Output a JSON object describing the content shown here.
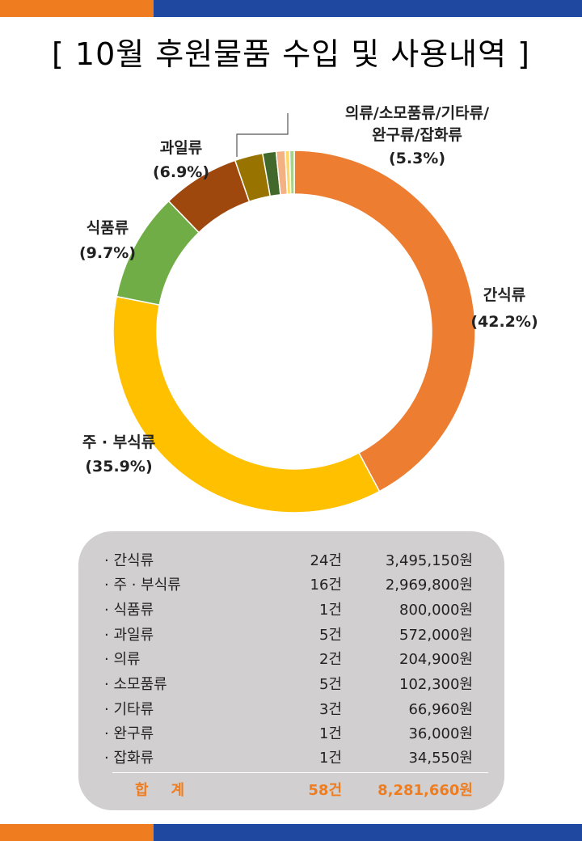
{
  "title": "[ 10월 후원물품 수입 및 사용내역 ]",
  "colors": {
    "band_orange": "#ef7d1f",
    "band_blue": "#1f48a0",
    "total_text": "#ef7d1f"
  },
  "chart_data": {
    "type": "donut",
    "segments": [
      {
        "name": "간식류",
        "value": 42.2,
        "color": "#ed7d31"
      },
      {
        "name": "주 · 부식류",
        "value": 35.9,
        "color": "#ffc000"
      },
      {
        "name": "식품류",
        "value": 9.7,
        "color": "#70ad47"
      },
      {
        "name": "과일류",
        "value": 6.9,
        "color": "#9e480e"
      },
      {
        "name": "의류",
        "value": 2.5,
        "color": "#997300"
      },
      {
        "name": "소모품류",
        "value": 1.2,
        "color": "#43682b"
      },
      {
        "name": "기타류",
        "value": 0.8,
        "color": "#f4b183"
      },
      {
        "name": "완구류",
        "value": 0.4,
        "color": "#ffd966"
      },
      {
        "name": "잡화류",
        "value": 0.4,
        "color": "#a9d18e"
      }
    ],
    "labels": {
      "snack": {
        "name": "간식류",
        "pct": "(42.2%)"
      },
      "staple": {
        "name": "주 · 부식류",
        "pct": "(35.9%)"
      },
      "food": {
        "name": "식품류",
        "pct": "(9.7%)"
      },
      "fruit": {
        "name": "과일류",
        "pct": "(6.9%)"
      },
      "misc": {
        "line1": "의류/소모품류/기타류/",
        "line2": "완구류/잡화류",
        "pct": "(5.3%)"
      }
    }
  },
  "summary": {
    "rows": [
      {
        "category": "· 간식류",
        "count": "24건",
        "amount": "3,495,150원"
      },
      {
        "category": "· 주 · 부식류",
        "count": "16건",
        "amount": "2,969,800원"
      },
      {
        "category": "· 식품류",
        "count": "1건",
        "amount": "800,000원"
      },
      {
        "category": "· 과일류",
        "count": "5건",
        "amount": "572,000원"
      },
      {
        "category": "· 의류",
        "count": "2건",
        "amount": "204,900원"
      },
      {
        "category": "· 소모품류",
        "count": "5건",
        "amount": "102,300원"
      },
      {
        "category": "· 기타류",
        "count": "3건",
        "amount": "66,960원"
      },
      {
        "category": "· 완구류",
        "count": "1건",
        "amount": "36,000원"
      },
      {
        "category": "· 잡화류",
        "count": "1건",
        "amount": "34,550원"
      }
    ],
    "total": {
      "label": "합계",
      "count": "58건",
      "amount": "8,281,660원"
    }
  }
}
